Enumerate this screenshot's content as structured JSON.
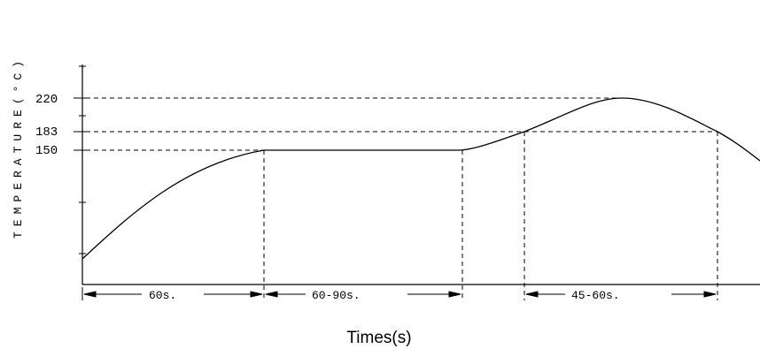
{
  "chart_data": {
    "type": "line",
    "title": "",
    "ylabel": "TEMPERATURE(°C)",
    "xlabel": "Times(s)",
    "y_ticks": [
      "220",
      "183",
      "150"
    ],
    "y_tick_values": [
      220,
      183,
      150
    ],
    "intervals": [
      {
        "label": "60s."
      },
      {
        "label": "60-90s."
      },
      {
        "label": "45-60s."
      }
    ],
    "curve": {
      "name": "",
      "points": [
        [
          0,
          50
        ],
        [
          40,
          100
        ],
        [
          98,
          150
        ],
        [
          155,
          150
        ],
        [
          230,
          150
        ],
        [
          260,
          162
        ],
        [
          380,
          220
        ],
        [
          460,
          195
        ],
        [
          560,
          140
        ]
      ]
    },
    "grid": false
  }
}
